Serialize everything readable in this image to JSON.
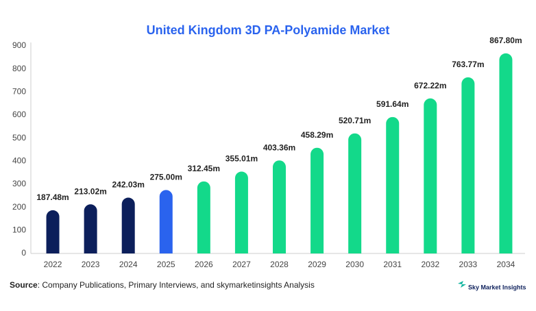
{
  "chart_data": {
    "type": "bar",
    "title": "United Kingdom 3D PA-Polyamide Market",
    "categories": [
      "2022",
      "2023",
      "2024",
      "2025",
      "2026",
      "2027",
      "2028",
      "2029",
      "2030",
      "2031",
      "2032",
      "2033",
      "2034"
    ],
    "values": [
      187.48,
      213.02,
      242.03,
      275.0,
      312.45,
      355.01,
      403.36,
      458.29,
      520.71,
      591.64,
      672.22,
      763.77,
      867.8
    ],
    "value_labels": [
      "187.48m",
      "213.02m",
      "242.03m",
      "275.00m",
      "312.45m",
      "355.01m",
      "403.36m",
      "458.29m",
      "520.71m",
      "591.64m",
      "672.22m",
      "763.77m",
      "867.80m"
    ],
    "colors": [
      "#0c1f5b",
      "#0c1f5b",
      "#0c1f5b",
      "#2a63ee",
      "#13d98a",
      "#13d98a",
      "#13d98a",
      "#13d98a",
      "#13d98a",
      "#13d98a",
      "#13d98a",
      "#13d98a",
      "#13d98a"
    ],
    "ylim": [
      0,
      900
    ],
    "yticks": [
      0,
      100,
      200,
      300,
      400,
      500,
      600,
      700,
      800,
      900
    ],
    "grid": false,
    "source_label": "Source",
    "source": ": Company Publications, Primary Interviews, and skymarketinsights Analysis",
    "logo": "Sky Market Insights"
  }
}
